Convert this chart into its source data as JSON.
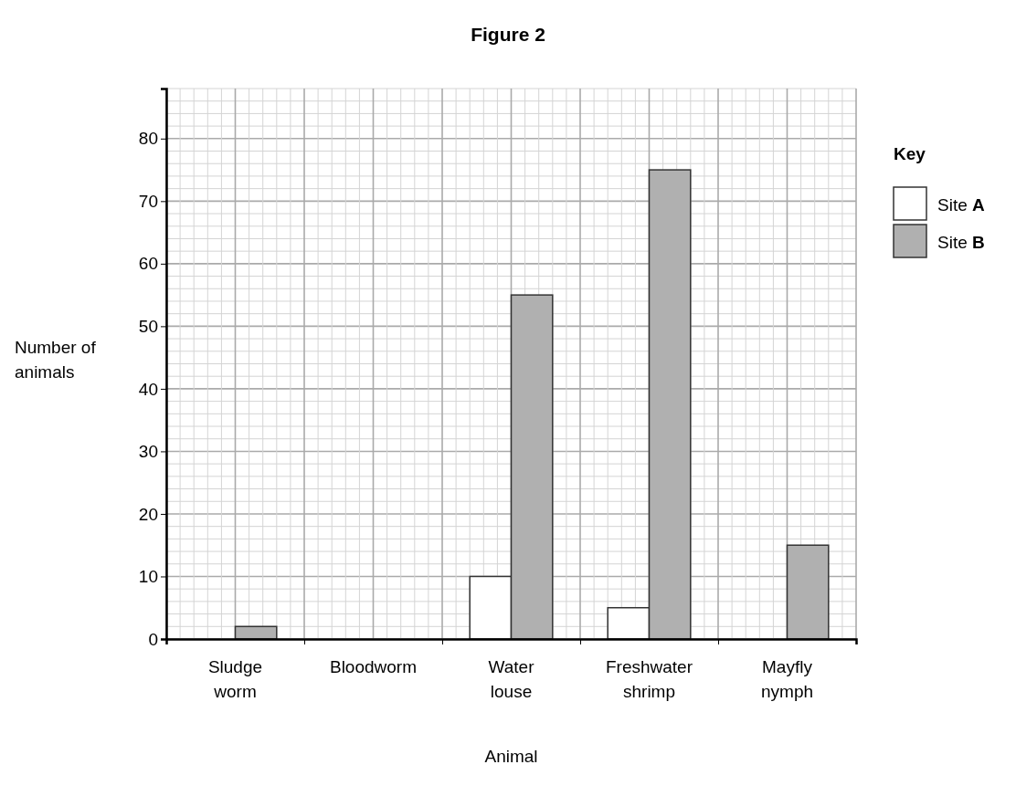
{
  "chart_data": {
    "type": "bar",
    "title": "Figure 2",
    "xlabel": "Animal",
    "ylabel": "Number of animals",
    "legend_title": "Key",
    "categories": [
      "Sludge worm",
      "Bloodworm",
      "Water louse",
      "Freshwater shrimp",
      "Mayfly nymph"
    ],
    "series": [
      {
        "name": "Site A",
        "color": "#ffffff",
        "values": [
          0,
          0,
          10,
          5,
          0
        ]
      },
      {
        "name": "Site B",
        "color": "#b0b0b0",
        "values": [
          2,
          0,
          55,
          75,
          15
        ]
      }
    ],
    "ylim": [
      0,
      88
    ],
    "yticks": [
      0,
      10,
      20,
      30,
      40,
      50,
      60,
      70,
      80
    ],
    "grid": true,
    "legend": "right"
  }
}
